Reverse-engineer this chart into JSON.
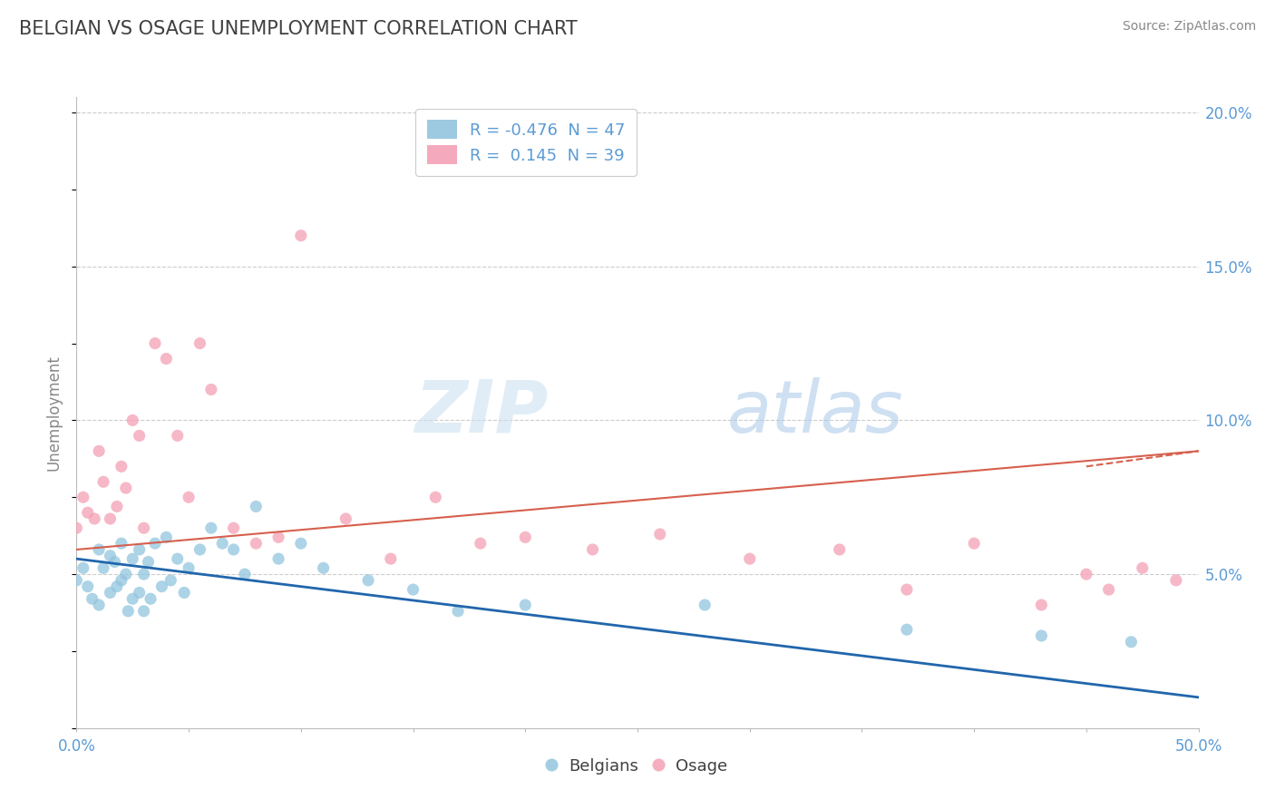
{
  "title": "BELGIAN VS OSAGE UNEMPLOYMENT CORRELATION CHART",
  "source": "Source: ZipAtlas.com",
  "ylabel": "Unemployment",
  "watermark_zip": "ZIP",
  "watermark_atlas": "atlas",
  "x_min": 0.0,
  "x_max": 0.5,
  "y_min": 0.0,
  "y_max": 0.205,
  "x_ticks": [
    0.0,
    0.05,
    0.1,
    0.15,
    0.2,
    0.25,
    0.3,
    0.35,
    0.4,
    0.45,
    0.5
  ],
  "y_ticks": [
    0.0,
    0.05,
    0.1,
    0.15,
    0.2
  ],
  "legend_r_blue": "-0.476",
  "legend_n_blue": "47",
  "legend_r_pink": "0.145",
  "legend_n_pink": "39",
  "blue_color": "#92c5de",
  "pink_color": "#f4a0b5",
  "blue_line_color": "#2166ac",
  "pink_line_color": "#d6604d",
  "title_color": "#404040",
  "axis_color": "#bbbbbb",
  "tick_label_color": "#5b9bd5",
  "grid_color": "#cccccc",
  "blue_scatter_x": [
    0.0,
    0.003,
    0.005,
    0.007,
    0.01,
    0.01,
    0.012,
    0.015,
    0.015,
    0.017,
    0.018,
    0.02,
    0.02,
    0.022,
    0.023,
    0.025,
    0.025,
    0.028,
    0.028,
    0.03,
    0.03,
    0.032,
    0.033,
    0.035,
    0.038,
    0.04,
    0.042,
    0.045,
    0.048,
    0.05,
    0.055,
    0.06,
    0.065,
    0.07,
    0.075,
    0.08,
    0.09,
    0.1,
    0.11,
    0.13,
    0.15,
    0.17,
    0.2,
    0.28,
    0.37,
    0.43,
    0.47
  ],
  "blue_scatter_y": [
    0.048,
    0.052,
    0.046,
    0.042,
    0.058,
    0.04,
    0.052,
    0.056,
    0.044,
    0.054,
    0.046,
    0.06,
    0.048,
    0.05,
    0.038,
    0.055,
    0.042,
    0.058,
    0.044,
    0.05,
    0.038,
    0.054,
    0.042,
    0.06,
    0.046,
    0.062,
    0.048,
    0.055,
    0.044,
    0.052,
    0.058,
    0.065,
    0.06,
    0.058,
    0.05,
    0.072,
    0.055,
    0.06,
    0.052,
    0.048,
    0.045,
    0.038,
    0.04,
    0.04,
    0.032,
    0.03,
    0.028
  ],
  "pink_scatter_x": [
    0.0,
    0.003,
    0.005,
    0.008,
    0.01,
    0.012,
    0.015,
    0.018,
    0.02,
    0.022,
    0.025,
    0.028,
    0.03,
    0.035,
    0.04,
    0.045,
    0.05,
    0.055,
    0.06,
    0.07,
    0.08,
    0.09,
    0.1,
    0.12,
    0.14,
    0.16,
    0.18,
    0.2,
    0.23,
    0.26,
    0.3,
    0.34,
    0.37,
    0.4,
    0.43,
    0.45,
    0.46,
    0.475,
    0.49
  ],
  "pink_scatter_y": [
    0.065,
    0.075,
    0.07,
    0.068,
    0.09,
    0.08,
    0.068,
    0.072,
    0.085,
    0.078,
    0.1,
    0.095,
    0.065,
    0.125,
    0.12,
    0.095,
    0.075,
    0.125,
    0.11,
    0.065,
    0.06,
    0.062,
    0.16,
    0.068,
    0.055,
    0.075,
    0.06,
    0.062,
    0.058,
    0.063,
    0.055,
    0.058,
    0.045,
    0.06,
    0.04,
    0.05,
    0.045,
    0.052,
    0.048
  ],
  "blue_trendline_x": [
    0.0,
    0.5
  ],
  "blue_trendline_y": [
    0.055,
    0.01
  ],
  "pink_trendline_x": [
    0.0,
    0.5
  ],
  "pink_trendline_y": [
    0.058,
    0.09
  ],
  "figsize": [
    14.06,
    8.92
  ],
  "dpi": 100
}
